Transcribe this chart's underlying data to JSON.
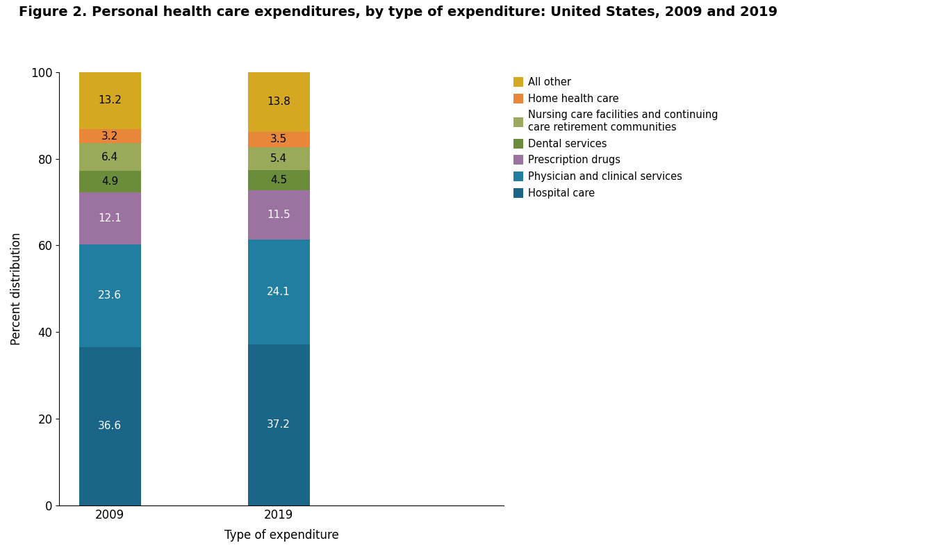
{
  "title": "Figure 2. Personal health care expenditures, by type of expenditure: United States, 2009 and 2019",
  "years": [
    "2009",
    "2019"
  ],
  "values_2009": [
    36.6,
    23.6,
    12.1,
    4.9,
    6.4,
    3.2,
    13.2
  ],
  "values_2019": [
    37.2,
    24.1,
    11.5,
    4.5,
    5.4,
    3.5,
    13.8
  ],
  "colors": [
    "#1b6589",
    "#217ea0",
    "#9b72a0",
    "#6b8c3a",
    "#9aaa5a",
    "#e8873a",
    "#d4a820"
  ],
  "legend_labels": [
    "All other",
    "Home health care",
    "Nursing care facilities and continuing\ncare retirement communities",
    "Dental services",
    "Prescription drugs",
    "Physician and clinical services",
    "Hospital care"
  ],
  "text_colors": [
    "white",
    "white",
    "white",
    "black",
    "black",
    "black",
    "black"
  ],
  "xlabel": "Type of expenditure",
  "ylabel": "Percent distribution",
  "ylim": [
    0,
    100
  ],
  "yticks": [
    0,
    20,
    40,
    60,
    80,
    100
  ],
  "title_fontsize": 14,
  "label_fontsize": 12,
  "tick_fontsize": 12,
  "bar_value_fontsize": 11,
  "background_color": "#ffffff",
  "bar_width": 0.55,
  "x_positions": [
    1,
    2.5
  ]
}
